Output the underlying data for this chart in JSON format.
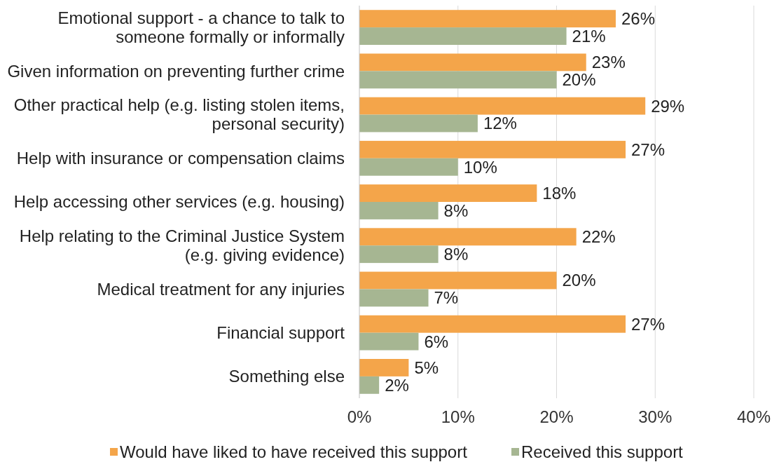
{
  "chart_data": {
    "type": "bar",
    "orientation": "horizontal",
    "categories": [
      "Emotional support - a chance to talk to someone formally or informally",
      "Given information on preventing further crime",
      "Other practical help (e.g. listing stolen items, personal security)",
      "Help with insurance or compensation claims",
      "Help accessing other services (e.g. housing)",
      "Help relating to the Criminal Justice System (e.g. giving evidence)",
      "Medical treatment for any injuries",
      "Financial support",
      "Something else"
    ],
    "series": [
      {
        "name": "Would have liked to have received this support",
        "color": "#f4a54a",
        "values": [
          26,
          23,
          29,
          27,
          18,
          22,
          20,
          27,
          5
        ],
        "value_labels": [
          "26%",
          "23%",
          "29%",
          "27%",
          "18%",
          "22%",
          "20%",
          "27%",
          "5%"
        ]
      },
      {
        "name": "Received this support",
        "color": "#a6b692",
        "values": [
          21,
          20,
          12,
          10,
          8,
          8,
          7,
          6,
          2
        ],
        "value_labels": [
          "21%",
          "20%",
          "12%",
          "10%",
          "8%",
          "8%",
          "7%",
          "6%",
          "2%"
        ]
      }
    ],
    "xlim": [
      0,
      40
    ],
    "xticks": [
      {
        "value": 0,
        "label": "0%"
      },
      {
        "value": 10,
        "label": "10%"
      },
      {
        "value": 20,
        "label": "20%"
      },
      {
        "value": 30,
        "label": "30%"
      },
      {
        "value": 40,
        "label": "40%"
      }
    ],
    "grid": "x",
    "legend": "bottom"
  }
}
